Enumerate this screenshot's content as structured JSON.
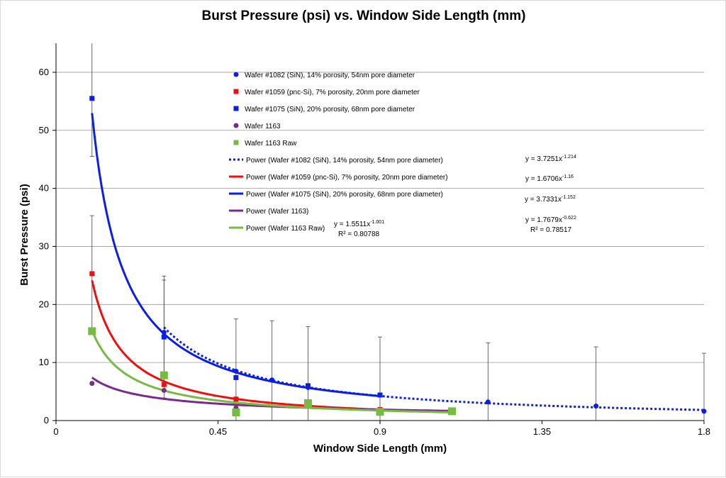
{
  "chart_data": {
    "type": "scatter",
    "title": "Burst Pressure (psi) vs. Window Side Length (mm)",
    "xlabel": "Window Side Length (mm)",
    "ylabel": "Burst Pressure (psi)",
    "xlim": [
      0,
      1.8
    ],
    "ylim": [
      0,
      65
    ],
    "xticks": [
      0,
      0.45,
      0.9,
      1.35,
      1.8
    ],
    "xtick_labels": [
      "0",
      "0.45",
      "0.9",
      "1.35",
      "1.8"
    ],
    "yticks": [
      0,
      10,
      20,
      30,
      40,
      50,
      60
    ],
    "ytick_labels": [
      "0",
      "10",
      "20",
      "30",
      "40",
      "50",
      "60"
    ],
    "grid": "horizontal",
    "legend_position": "top-center",
    "series": [
      {
        "name": "Wafer #1082 (SiN), 14% porosity, 54nm pore diameter",
        "color": "#0a1ee6",
        "marker": "circle",
        "points": [
          {
            "x": 0.3,
            "y": 15.2,
            "err": 9.0
          },
          {
            "x": 0.5,
            "y": 8.5,
            "err": 9.0
          },
          {
            "x": 0.6,
            "y": 7.0,
            "err": 10.2
          },
          {
            "x": 0.7,
            "y": 5.7,
            "err": 10.5
          },
          {
            "x": 0.9,
            "y": 4.4,
            "err": 10.0
          },
          {
            "x": 1.2,
            "y": 3.2,
            "err": 10.2
          },
          {
            "x": 1.5,
            "y": 2.5,
            "err": 10.2
          },
          {
            "x": 1.8,
            "y": 1.6,
            "err": 10.0
          }
        ]
      },
      {
        "name": "Wafer #1059 (pnc-Si), 7% porosity, 20nm pore diameter",
        "color": "#f00f0f",
        "marker": "square",
        "points": [
          {
            "x": 0.1,
            "y": 25.3,
            "err": 10.0
          },
          {
            "x": 0.3,
            "y": 6.2,
            "err": 0
          },
          {
            "x": 0.5,
            "y": 3.7,
            "err": 0
          },
          {
            "x": 0.9,
            "y": 1.9,
            "err": 0
          }
        ]
      },
      {
        "name": "Wafer #1075 (SiN), 20% porosity, 68nm pore diameter",
        "color": "#0a1ee6",
        "marker": "square",
        "points": [
          {
            "x": 0.1,
            "y": 55.5,
            "err": 10.0
          },
          {
            "x": 0.3,
            "y": 14.4,
            "err": 10.5
          },
          {
            "x": 0.5,
            "y": 7.4,
            "err": 0
          },
          {
            "x": 0.7,
            "y": 6.0,
            "err": 0
          },
          {
            "x": 0.9,
            "y": 4.4,
            "err": 0
          }
        ]
      },
      {
        "name": "Wafer 1163",
        "color": "#7a2a8c",
        "marker": "circle",
        "points": [
          {
            "x": 0.1,
            "y": 6.4,
            "err": 0
          },
          {
            "x": 0.3,
            "y": 5.2,
            "err": 0
          },
          {
            "x": 0.5,
            "y": 2.2,
            "err": 0
          }
        ]
      },
      {
        "name": "Wafer 1163 Raw",
        "color": "#77bb44",
        "marker": "square-large",
        "points": [
          {
            "x": 0.1,
            "y": 15.4,
            "err": 0
          },
          {
            "x": 0.3,
            "y": 7.8,
            "err": 0
          },
          {
            "x": 0.5,
            "y": 1.4,
            "err": 0
          },
          {
            "x": 0.7,
            "y": 3.0,
            "err": 0
          },
          {
            "x": 0.9,
            "y": 1.5,
            "err": 0
          },
          {
            "x": 1.1,
            "y": 1.6,
            "err": 0
          }
        ]
      }
    ],
    "trendlines": [
      {
        "name": "Power (Wafer #1082 (SiN), 14% porosity, 54nm pore diameter)",
        "color": "#0a1ee6",
        "dash": "dotted",
        "a": 3.7251,
        "b": -1.214,
        "x_range": [
          0.3,
          1.8
        ],
        "equation_base": "y = 3.7251x",
        "equation_exp": "-1.214",
        "r2": ""
      },
      {
        "name": "Power (Wafer #1059 (pnc-Si), 7% porosity, 20nm pore diameter)",
        "color": "#f00f0f",
        "dash": "solid",
        "a": 1.6706,
        "b": -1.16,
        "x_range": [
          0.1,
          0.9
        ],
        "equation_base": "y = 1.6706x",
        "equation_exp": "-1.16",
        "r2": ""
      },
      {
        "name": "Power (Wafer #1075 (SiN), 20% porosity, 68nm pore diameter)",
        "color": "#0a1ee6",
        "dash": "solid",
        "a": 3.7331,
        "b": -1.152,
        "x_range": [
          0.1,
          0.9
        ],
        "equation_base": "y = 3.7331x",
        "equation_exp": "-1.152",
        "r2": ""
      },
      {
        "name": "Power (Wafer 1163)",
        "color": "#7a2a8c",
        "dash": "solid",
        "a": 1.7679,
        "b": -0.622,
        "x_range": [
          0.1,
          1.1
        ],
        "equation_base": "y = 1.7679x",
        "equation_exp": "-0.622",
        "r2": "R² = 0.78517"
      },
      {
        "name": "Power (Wafer 1163 Raw)",
        "color": "#77bb44",
        "dash": "solid",
        "a": 1.5511,
        "b": -1.001,
        "x_range": [
          0.1,
          1.1
        ],
        "equation_base": "y = 1.5511x",
        "equation_exp": "-1.001",
        "r2": "R² = 0.80788"
      }
    ]
  }
}
